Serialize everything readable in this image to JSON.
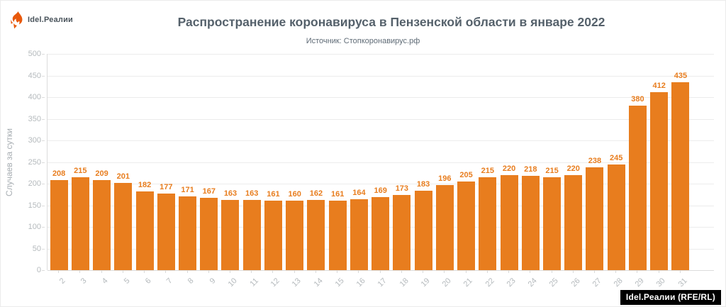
{
  "header": {
    "logo_text": "Idel.Реалии",
    "title": "Распространение коронавируса в Пензенской области в январе 2022",
    "subtitle": "Источник: Стопкоронавирус.рф"
  },
  "watermark": "Idel.Реалии (RFE/RL)",
  "colors": {
    "bar": "#e87d1e",
    "value_label": "#e87d1e",
    "logo_flame": "#e8590c",
    "title_text": "#55616b",
    "axis_text": "#b5babd",
    "gridline": "#ececec"
  },
  "chart_data": {
    "type": "bar",
    "title": "Распространение коронавируса в Пензенской области в январе 2022",
    "subtitle": "Источник: Стопкоронавирус.рф",
    "xlabel": "",
    "ylabel": "Случаев за сутки",
    "ylim": [
      0,
      500
    ],
    "ytick_step": 50,
    "grid": true,
    "legend": "none",
    "categories": [
      "2",
      "3",
      "4",
      "5",
      "6",
      "7",
      "8",
      "9",
      "10",
      "11",
      "12",
      "13",
      "14",
      "15",
      "16",
      "17",
      "18",
      "19",
      "20",
      "21",
      "22",
      "23",
      "24",
      "25",
      "26",
      "27",
      "28",
      "29",
      "30",
      "31"
    ],
    "values": [
      208,
      215,
      209,
      201,
      182,
      177,
      171,
      167,
      163,
      163,
      161,
      160,
      162,
      161,
      164,
      169,
      173,
      183,
      196,
      205,
      215,
      220,
      218,
      215,
      220,
      238,
      245,
      380,
      412,
      435
    ]
  }
}
